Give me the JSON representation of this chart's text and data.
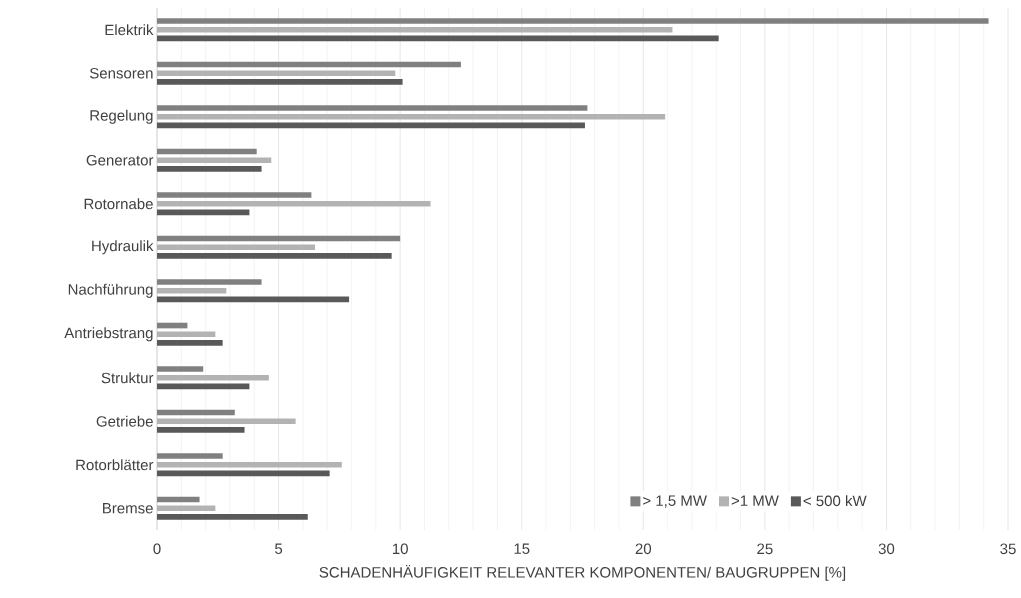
{
  "chart_data": {
    "type": "bar",
    "orientation": "horizontal",
    "xlabel": "SCHADENHÄUFIGKEIT RELEVANTER KOMPONENTEN/ BAUGRUPPEN [%]",
    "categories": [
      "Elektrik",
      "Sensoren",
      "Regelung",
      "Generator",
      "Rotornabe",
      "Hydraulik",
      "Nachführung",
      "Antriebstrang",
      "Struktur",
      "Getriebe",
      "Rotorblätter",
      "Bremse"
    ],
    "series": [
      {
        "name": "> 1,5 MW",
        "color": "#808080",
        "values": [
          34.2,
          12.5,
          17.7,
          4.1,
          6.35,
          10.0,
          4.3,
          1.25,
          1.9,
          3.2,
          2.7,
          1.75
        ]
      },
      {
        "name": ">1 MW",
        "color": "#b3b3b3",
        "values": [
          21.2,
          9.8,
          20.9,
          4.7,
          11.25,
          6.5,
          2.85,
          2.4,
          4.6,
          5.7,
          7.6,
          2.4
        ]
      },
      {
        "name": "< 500 kW",
        "color": "#595959",
        "values": [
          23.1,
          10.1,
          17.6,
          4.3,
          3.8,
          9.65,
          7.9,
          2.7,
          3.8,
          3.6,
          7.1,
          6.2
        ]
      }
    ],
    "xlim": [
      0,
      35
    ],
    "xticks": [
      0,
      5,
      10,
      15,
      20,
      25,
      30,
      35
    ],
    "grid": "x",
    "legend": "bottom right"
  }
}
